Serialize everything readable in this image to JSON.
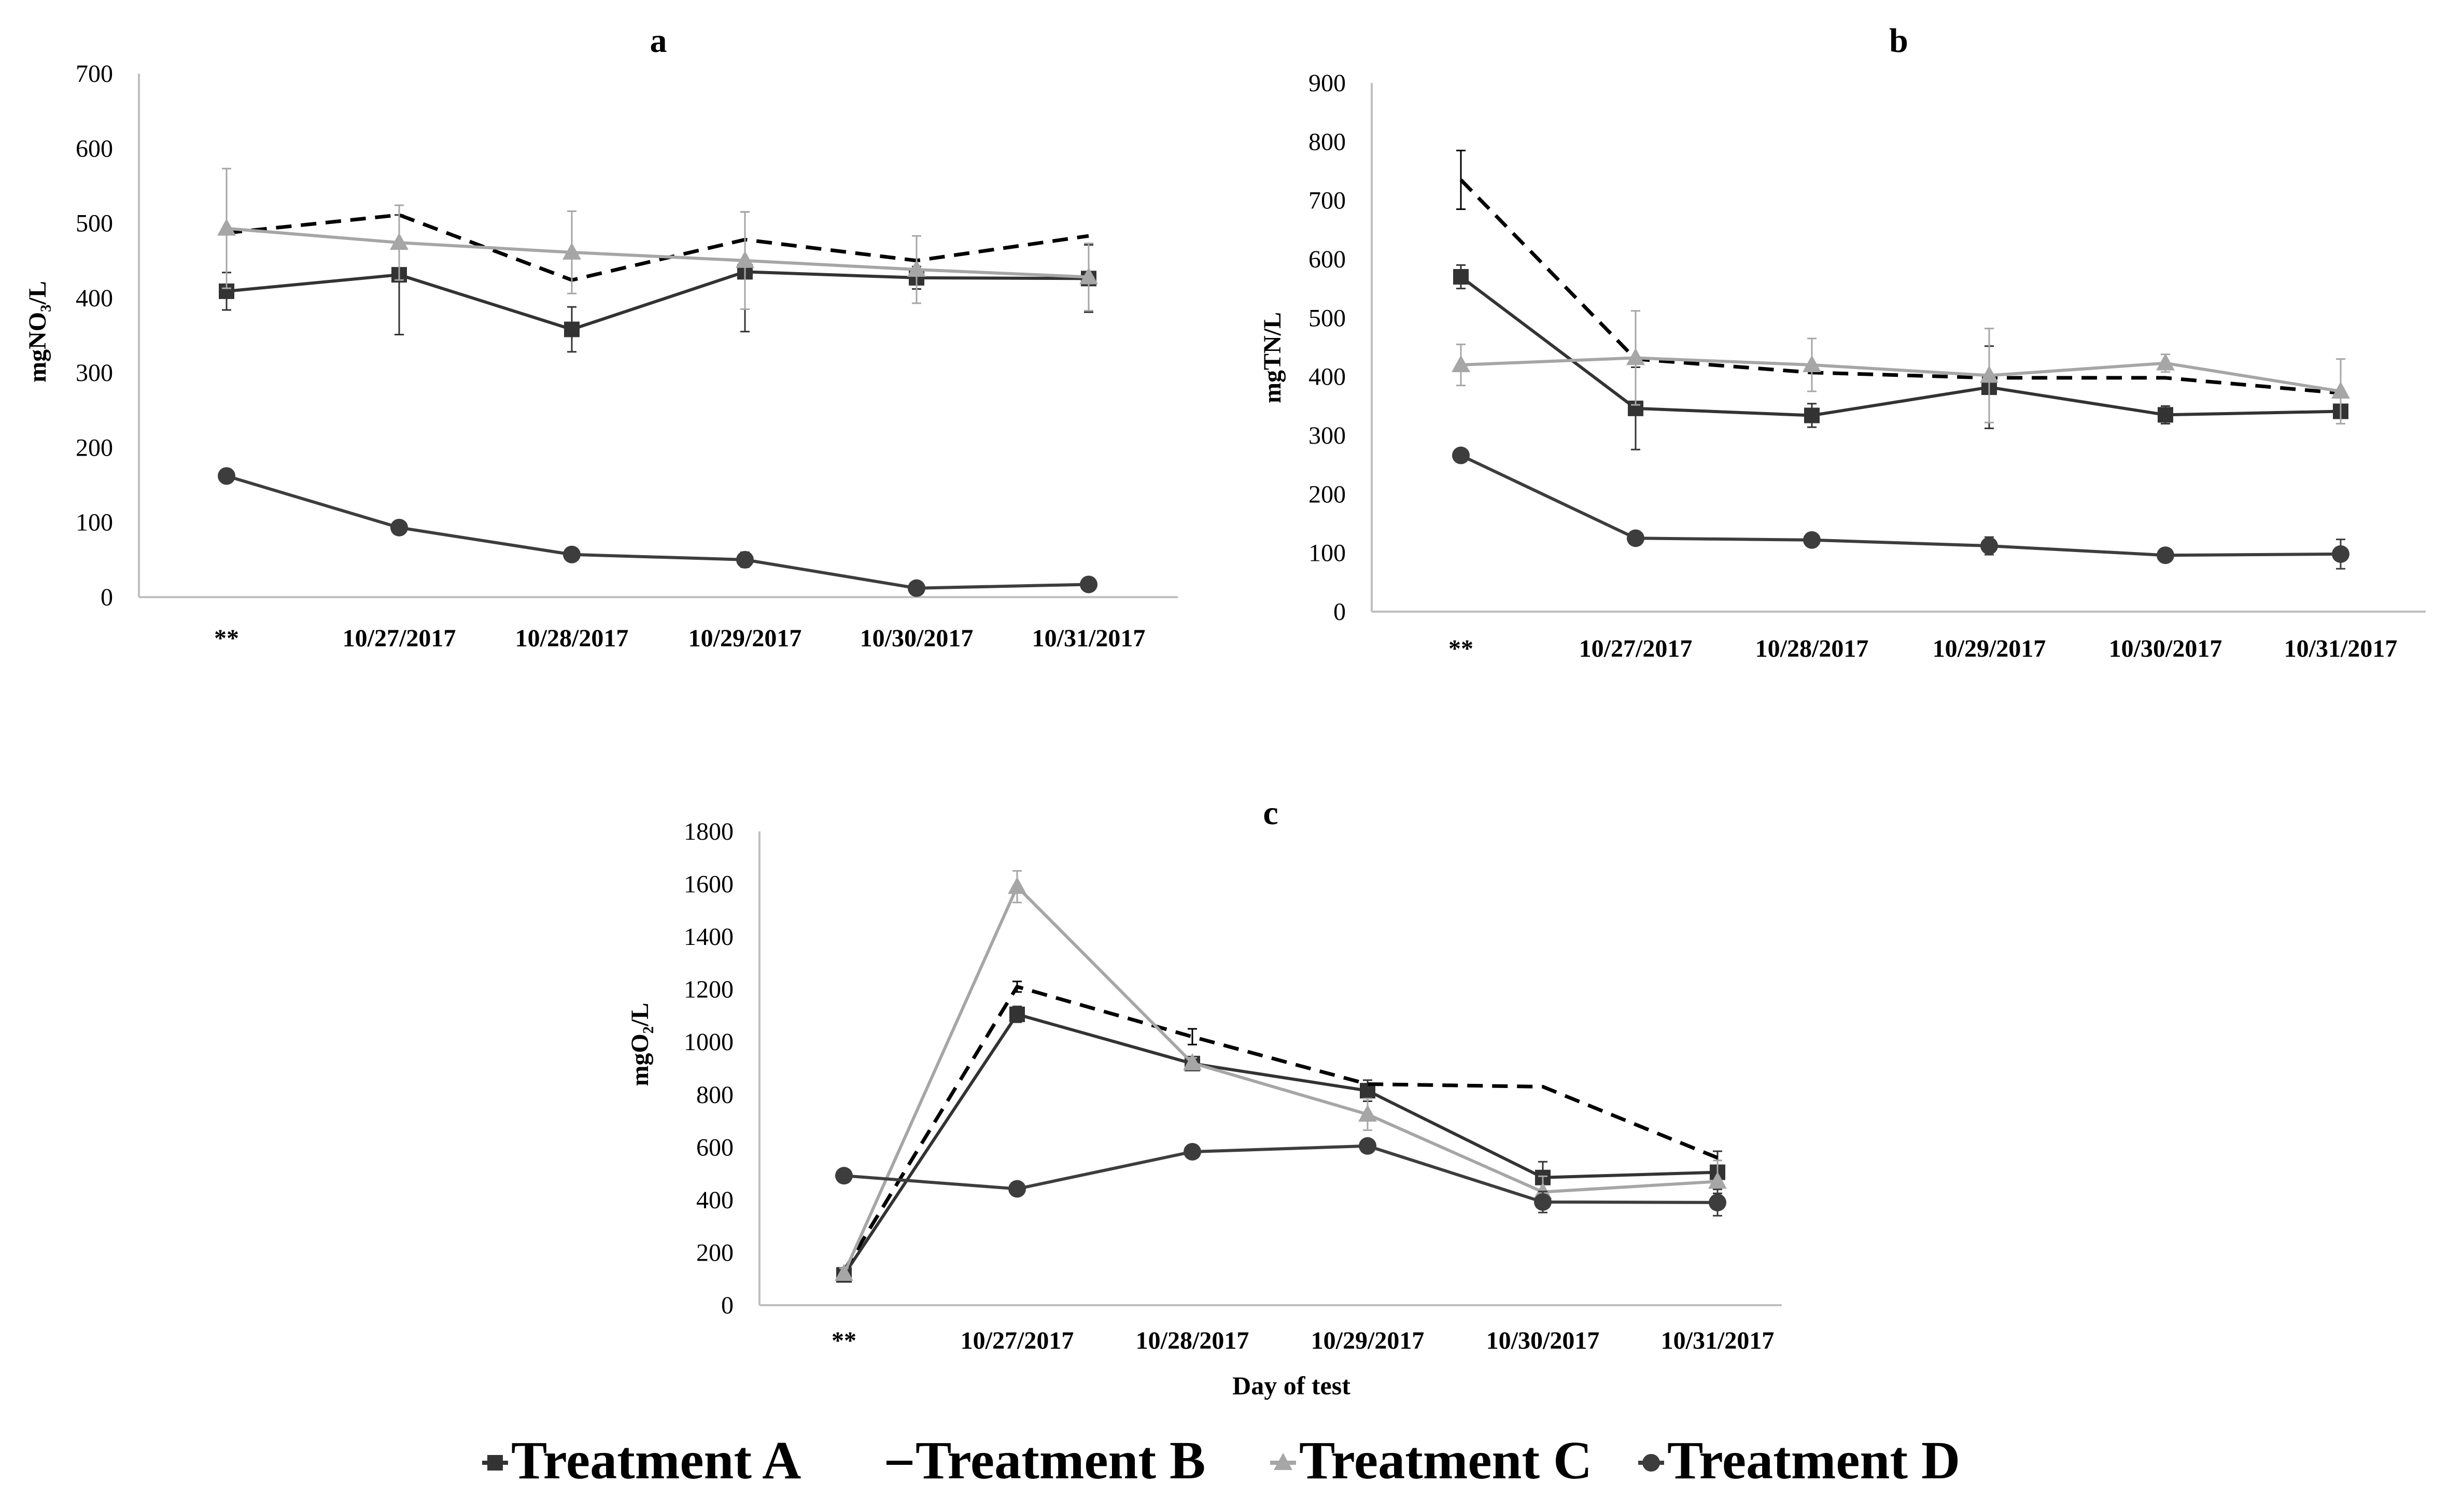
{
  "chart_data": [
    {
      "type": "line",
      "title": "a",
      "ylabel": "mgNO₃/L",
      "xlabel": "",
      "ylim": [
        0,
        700
      ],
      "yticks": [
        0,
        100,
        200,
        300,
        400,
        500,
        600,
        700
      ],
      "categories": [
        "**",
        "10/27/2017",
        "10/28/2017",
        "10/29/2017",
        "10/30/2017",
        "10/31/2017"
      ],
      "series": [
        {
          "name": "Treatment A",
          "values": [
            409,
            431,
            358,
            435,
            427,
            426
          ],
          "errors": [
            25,
            80,
            30,
            80,
            15,
            45
          ],
          "color": "#333333",
          "dash": "solid",
          "marker": "square"
        },
        {
          "name": "Treatment B",
          "values": [
            487,
            511,
            424,
            478,
            450,
            483
          ],
          "errors": [
            0,
            0,
            0,
            0,
            0,
            0
          ],
          "color": "#000000",
          "dash": "dashed",
          "marker": "none"
        },
        {
          "name": "Treatment C",
          "values": [
            493,
            474,
            461,
            450,
            438,
            428
          ],
          "errors": [
            80,
            50,
            55,
            65,
            45,
            45
          ],
          "color": "#a6a6a6",
          "dash": "solid",
          "marker": "triangle"
        },
        {
          "name": "Treatment D",
          "values": [
            162,
            93,
            57,
            50,
            12,
            17
          ],
          "errors": [
            0,
            0,
            0,
            10,
            0,
            0
          ],
          "color": "#3d3d3d",
          "dash": "solid",
          "marker": "circle"
        }
      ]
    },
    {
      "type": "line",
      "title": "b",
      "ylabel": "mgTN/L",
      "xlabel": "",
      "ylim": [
        0,
        900
      ],
      "yticks": [
        0,
        100,
        200,
        300,
        400,
        500,
        600,
        700,
        800,
        900
      ],
      "categories": [
        "**",
        "10/27/2017",
        "10/28/2017",
        "10/29/2017",
        "10/30/2017",
        "10/31/2017"
      ],
      "series": [
        {
          "name": "Treatment A",
          "values": [
            570,
            346,
            334,
            382,
            335,
            341
          ],
          "errors": [
            20,
            70,
            20,
            70,
            15,
            10
          ],
          "color": "#333333",
          "dash": "solid",
          "marker": "square"
        },
        {
          "name": "Treatment B",
          "values": [
            735,
            430,
            407,
            398,
            398,
            372
          ],
          "errors": [
            50,
            0,
            0,
            0,
            0,
            0
          ],
          "color": "#000000",
          "dash": "dashed",
          "marker": "none"
        },
        {
          "name": "Treatment C",
          "values": [
            420,
            432,
            420,
            402,
            423,
            375
          ],
          "errors": [
            35,
            80,
            45,
            80,
            15,
            55
          ],
          "color": "#a6a6a6",
          "dash": "solid",
          "marker": "triangle"
        },
        {
          "name": "Treatment D",
          "values": [
            266,
            125,
            122,
            112,
            96,
            98
          ],
          "errors": [
            0,
            10,
            0,
            15,
            10,
            25
          ],
          "color": "#3d3d3d",
          "dash": "solid",
          "marker": "circle"
        }
      ]
    },
    {
      "type": "line",
      "title": "c",
      "ylabel": "mgO₂/L",
      "xlabel": "Day of test",
      "ylim": [
        0,
        1800
      ],
      "yticks": [
        0,
        200,
        400,
        600,
        800,
        1000,
        1200,
        1400,
        1600,
        1800
      ],
      "categories": [
        "**",
        "10/27/2017",
        "10/28/2017",
        "10/29/2017",
        "10/30/2017",
        "10/31/2017"
      ],
      "series": [
        {
          "name": "Treatment A",
          "values": [
            115,
            1105,
            918,
            815,
            485,
            505
          ],
          "errors": [
            20,
            30,
            20,
            40,
            60,
            80
          ],
          "color": "#333333",
          "dash": "solid",
          "marker": "square"
        },
        {
          "name": "Treatment B",
          "values": [
            130,
            1210,
            1020,
            840,
            830,
            560
          ],
          "errors": [
            0,
            20,
            30,
            0,
            0,
            0
          ],
          "color": "#000000",
          "dash": "dashed",
          "marker": "none"
        },
        {
          "name": "Treatment C",
          "values": [
            120,
            1590,
            920,
            725,
            430,
            470
          ],
          "errors": [
            20,
            60,
            20,
            60,
            60,
            80
          ],
          "color": "#a6a6a6",
          "dash": "solid",
          "marker": "triangle"
        },
        {
          "name": "Treatment D",
          "values": [
            492,
            442,
            583,
            605,
            392,
            390
          ],
          "errors": [
            0,
            0,
            0,
            0,
            40,
            50
          ],
          "color": "#3d3d3d",
          "dash": "solid",
          "marker": "circle"
        }
      ]
    }
  ],
  "legend": [
    {
      "label": "Treatment A"
    },
    {
      "label": "Treatment B"
    },
    {
      "label": "Treatment C"
    },
    {
      "label": "Treatment D"
    }
  ]
}
